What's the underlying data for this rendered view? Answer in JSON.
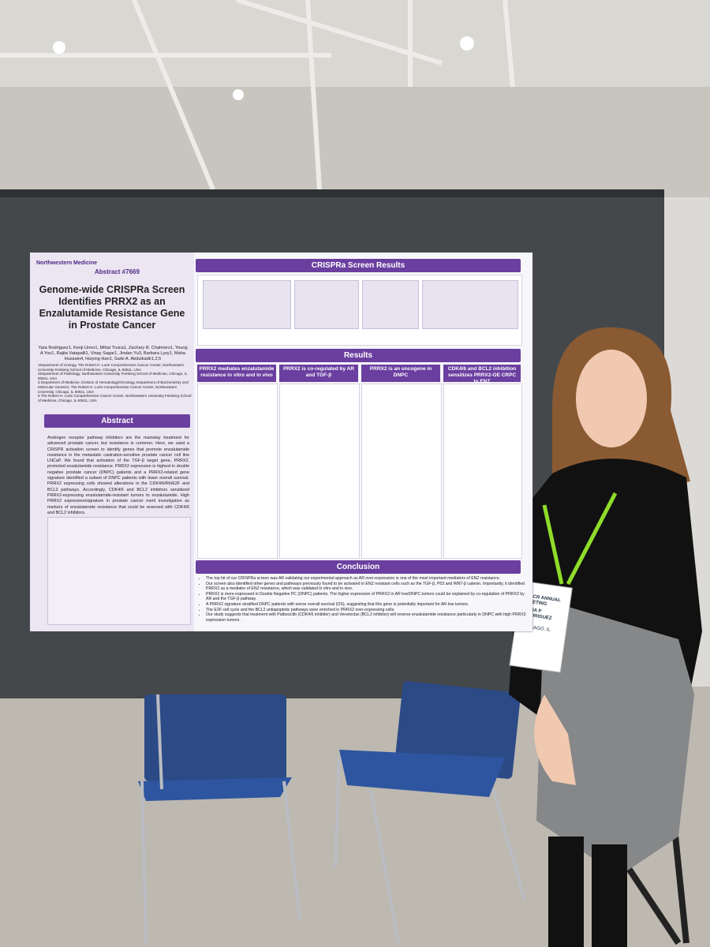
{
  "poster": {
    "logo": "Northwestern Medicine",
    "abstract_number": "Abstract #7669",
    "title": "Genome-wide CRISPRa Screen Identifies PRRX2 as an Enzalutamide Resistance Gene in Prostate Cancer",
    "authors": "Yara Rodriguez1, Kenji Unno1, Mihai Truica1, Zachary R. Chalmers1, Young A Yoo1, Rajita Vatapalli1, Vinay Sagar1, Jindan Yu3, Barbara Lysy1, Maha Hussain4, Huiying Han1, Sarki A. Abdulkadir1,2,5",
    "affiliations": [
      "1Department of Urology, The Robert H. Lurie Comprehensive Cancer Center, Northwestern University Feinberg School of Medicine, Chicago, IL 60611, USA",
      "2Department of Pathology, Northwestern University Feinberg School of Medicine, Chicago, IL 60611, USA",
      "3 Department of Medicine, Division of Hematology/Oncology, Department of Biochemistry and Molecular Genetics, The Robert H. Lurie Comprehensive Cancer Center, Northwestern University, Chicago, IL 60611, USA",
      "5 The Robert H. Lurie Comprehensive Cancer Center, Northwestern University Feinberg School of Medicine, Chicago, IL 60611, USA"
    ],
    "abstract": {
      "heading": "Abstract",
      "text": "Androgen receptor pathway inhibitors are the mainstay treatment for advanced prostate cancer, but resistance is common. Here, we used a CRISPR activation screen to identify genes that promote enzalutamide resistance in the metastatic castration-sensitive prostate cancer cell line LNCaP. We found that activation of the TGF-β target gene, PRRX2, promoted enzalutamide resistance. PRRX2 expression is highest in double negative prostate cancer (DNPC) patients and a PRRX2-related gene signature identified a subset of DNPC patients with lower overall survival. PRRX2 expressing cells showed alterations in the CDK4/6/Rb/E2F and BCL2 pathways. Accordingly, CDK4/6 and BCL2 inhibitors sensitized PRRX2-expressing enzalutamide-resistant tumors to enzalutamide. High PRRX2 expression/signature in prostate cancer merit investigation as markers of enzalutamide resistance that could be reversed with CDK4/6 and BCL2 inhibitors."
    },
    "crispra_heading": "CRISPRa Screen Results",
    "results": {
      "heading": "Results",
      "columns": [
        "PRRX2 mediates enzalutamide resistance in vitro and in vivo",
        "PRRX2 is co-regulated by AR and TGF-β",
        "PRRX2 is an oncogene in DNPC",
        "CDK4/6 and BCL2 inhibition sensitizes PRRX2-OE CRPC to ENZ"
      ]
    },
    "conclusion": {
      "heading": "Conclusion",
      "bullets": [
        "The top hit of our CRISPRa screen was AR validating our experimental approach as AR over-expression is one of the most important mediators of ENZ resistance.",
        "Our screen also identified other genes and pathways previously found to be activated in ENZ resistant cells such as the TGF-β, P53 and WNT-β catenin. Importantly, it identified PRRX2 as a mediator of ENZ resistance, which was validated in vitro and in vivo.",
        "PRRX2 is more expressed in Double Negative PC (DNPC) patients. The higher expression of PRRX2 in AR low/DNPC tumors could be explained by co-regulation of PRRX2 by AR and the TGF-β pathway.",
        "A PRRX2 signature stratified DNPC patients with worse overall survival (OS), suggesting that this gene is potentially important for AR-low tumors.",
        "The E2F cell cycle and the BCL2 antiapoptotic pathways were enriched in PRRX2 over-expressing cells.",
        "Our study suggests that treatment with Palbociclib (CDK4/6 inhibitor) and Venetoclax (BCL2 inhibitor) will reverse enzalutamide resistance particularly in DNPC with high PRRX2 expression tumors."
      ]
    }
  },
  "badge": {
    "event": "AACR ANNUAL MEETING",
    "name": "YARA P RODRIGUEZ",
    "city": "CHICAGO, IL"
  }
}
